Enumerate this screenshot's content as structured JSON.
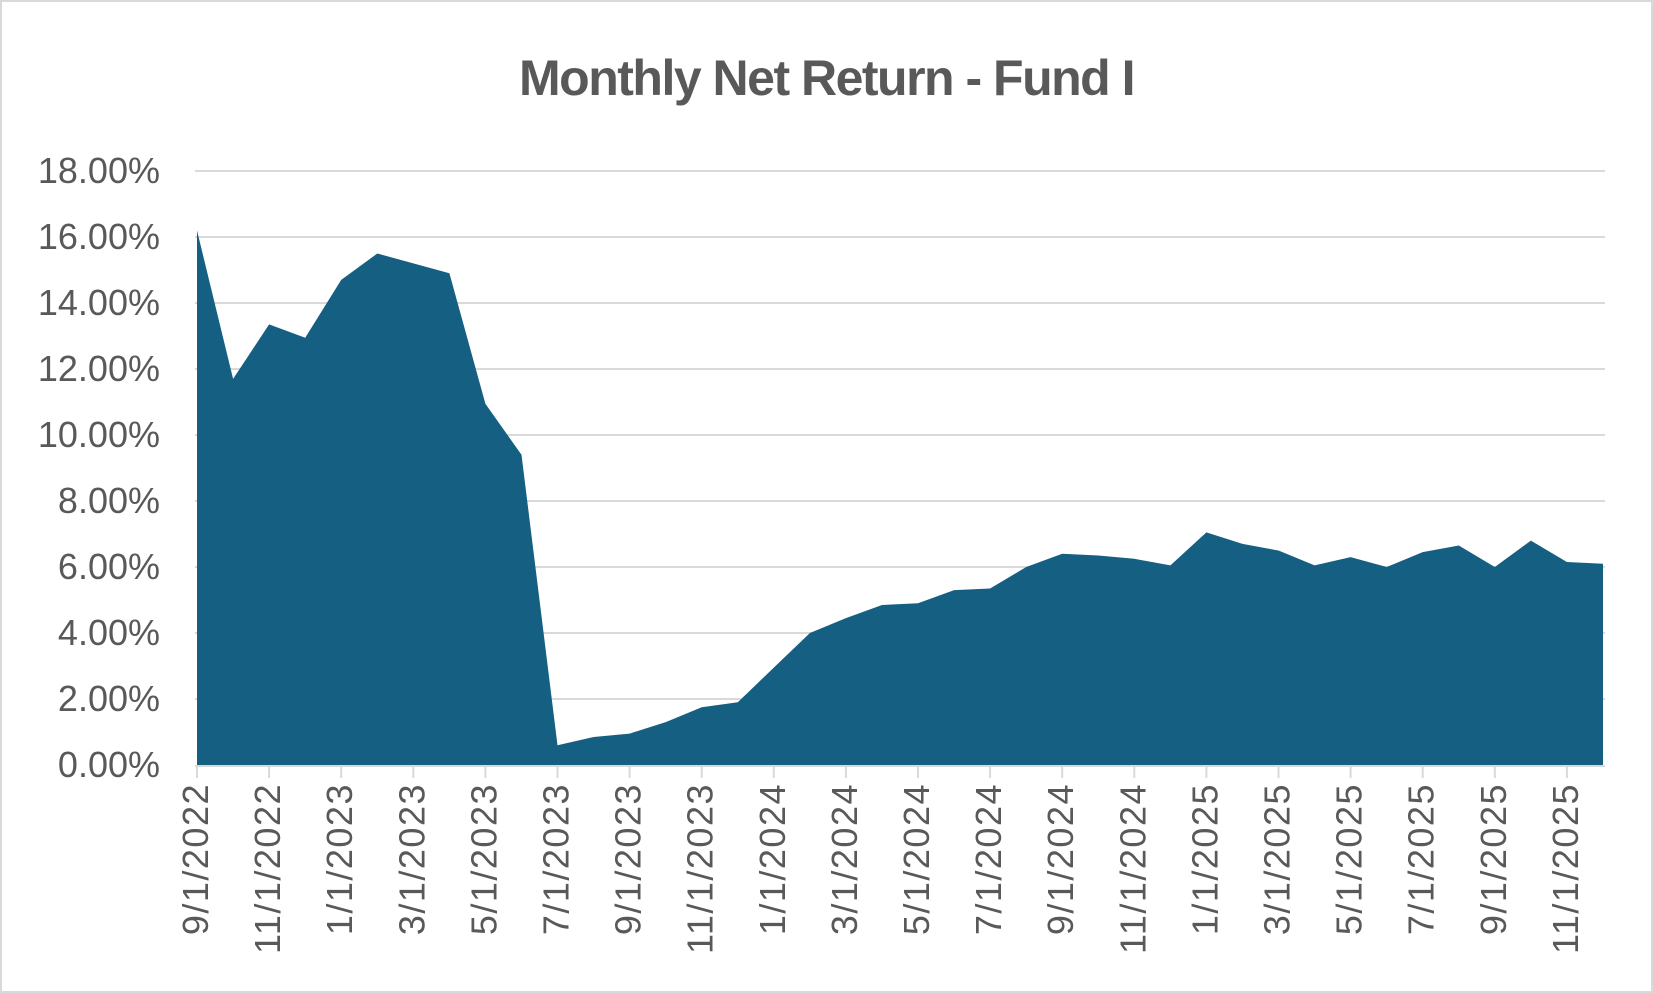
{
  "chart_data": {
    "type": "area",
    "title": "Monthly Net Return - Fund I",
    "series_name": "Monthly Net Return",
    "categories": [
      "9/1/2022",
      "10/1/2022",
      "11/1/2022",
      "12/1/2022",
      "1/1/2023",
      "2/1/2023",
      "3/1/2023",
      "4/1/2023",
      "5/1/2023",
      "6/1/2023",
      "7/1/2023",
      "8/1/2023",
      "9/1/2023",
      "10/1/2023",
      "11/1/2023",
      "12/1/2023",
      "1/1/2024",
      "2/1/2024",
      "3/1/2024",
      "4/1/2024",
      "5/1/2024",
      "6/1/2024",
      "7/1/2024",
      "8/1/2024",
      "9/1/2024",
      "10/1/2024",
      "11/1/2024",
      "12/1/2024",
      "1/1/2025",
      "2/1/2025",
      "3/1/2025",
      "4/1/2025",
      "5/1/2025",
      "6/1/2025",
      "7/1/2025",
      "8/1/2025",
      "9/1/2025",
      "10/1/2025",
      "11/1/2025",
      "12/1/2025"
    ],
    "values_pct": [
      16.2,
      11.7,
      13.35,
      12.95,
      14.7,
      15.5,
      15.2,
      14.9,
      10.95,
      9.4,
      0.6,
      0.85,
      0.95,
      1.3,
      1.75,
      1.9,
      2.95,
      4.0,
      4.45,
      4.85,
      4.9,
      5.3,
      5.35,
      6.0,
      6.4,
      6.35,
      6.25,
      6.05,
      7.05,
      6.7,
      6.5,
      6.05,
      6.3,
      6.0,
      6.45,
      6.65,
      6.0,
      6.8,
      6.15,
      6.1
    ],
    "y_tick_labels": [
      "18.00%",
      "16.00%",
      "14.00%",
      "12.00%",
      "10.00%",
      "8.00%",
      "6.00%",
      "4.00%",
      "2.00%",
      "0.00%"
    ],
    "x_tick_labels": [
      "9/1/2022",
      "11/1/2022",
      "1/1/2023",
      "3/1/2023",
      "5/1/2023",
      "7/1/2023",
      "9/1/2023",
      "11/1/2023",
      "1/1/2024",
      "3/1/2024",
      "5/1/2024",
      "7/1/2024",
      "9/1/2024",
      "11/1/2024",
      "1/1/2025",
      "3/1/2025",
      "5/1/2025",
      "7/1/2025",
      "9/1/2025",
      "11/1/2025"
    ],
    "x_label_every_n": 2,
    "ylim": [
      0,
      18
    ],
    "y_step_pct": 2,
    "xlabel": "",
    "ylabel": "",
    "grid": "horizontal",
    "legend": "none",
    "x_label_rotation_deg": -90,
    "colors": {
      "area": "#156082",
      "grid": "#d9d9d9",
      "axis": "#d9d9d9",
      "text": "#595959",
      "frame": "#d9d9d9",
      "background": "#ffffff"
    }
  }
}
